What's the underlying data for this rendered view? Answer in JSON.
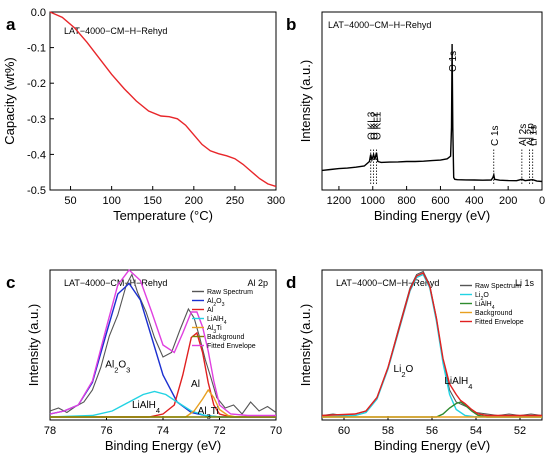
{
  "chart_data": [
    {
      "panel": "a",
      "type": "line",
      "sample_label": "LAT−4000−CM−H−Rehyd",
      "xlabel": "Temperature (°C)",
      "ylabel": "Capacity (wt%)",
      "xlim": [
        25,
        300
      ],
      "ylim": [
        -0.5,
        0.0
      ],
      "xticks": [
        50,
        100,
        150,
        200,
        250,
        300
      ],
      "yticks": [
        0.0,
        -0.1,
        -0.2,
        -0.3,
        -0.4,
        -0.5
      ],
      "ytick_labels": [
        "0.0",
        "-0.1",
        "-0.2",
        "-0.3",
        "-0.4",
        "-0.5"
      ],
      "series": [
        {
          "color": "#e8262a",
          "x": [
            25,
            40,
            55,
            70,
            85,
            100,
            115,
            130,
            145,
            160,
            170,
            180,
            190,
            200,
            210,
            220,
            230,
            240,
            250,
            260,
            270,
            280,
            290,
            300
          ],
          "y": [
            0.0,
            -0.015,
            -0.045,
            -0.085,
            -0.13,
            -0.175,
            -0.215,
            -0.25,
            -0.278,
            -0.292,
            -0.294,
            -0.3,
            -0.318,
            -0.345,
            -0.372,
            -0.39,
            -0.398,
            -0.404,
            -0.412,
            -0.428,
            -0.448,
            -0.468,
            -0.483,
            -0.49
          ]
        }
      ]
    },
    {
      "panel": "b",
      "type": "line",
      "sample_label": "LAT−4000−CM−H−Rehyd",
      "xlabel": "Binding Energy (eV)",
      "ylabel": "Intensity (a.u.)",
      "xlim": [
        1300,
        0
      ],
      "ylim": [
        0,
        1
      ],
      "xticks": [
        1200,
        1000,
        800,
        600,
        400,
        200,
        0
      ],
      "peak_labels": [
        {
          "text": "O KL3",
          "x": 1012
        },
        {
          "text": "O KL2",
          "x": 995
        },
        {
          "text": "O KL1",
          "x": 978
        },
        {
          "text": "O 1s",
          "x": 531
        },
        {
          "text": "C 1s",
          "x": 285
        },
        {
          "text": "Al 2s",
          "x": 119
        },
        {
          "text": "Al 2p",
          "x": 74
        },
        {
          "text": "Li 1s",
          "x": 55
        }
      ],
      "series": [
        {
          "color": "#000000",
          "x": [
            1300,
            1250,
            1200,
            1150,
            1100,
            1050,
            1020,
            1012,
            1005,
            995,
            988,
            978,
            970,
            950,
            900,
            850,
            800,
            750,
            700,
            650,
            600,
            560,
            540,
            535,
            531,
            527,
            522,
            515,
            500,
            450,
            400,
            350,
            300,
            290,
            285,
            280,
            250,
            200,
            150,
            119,
            100,
            74,
            55,
            30,
            0
          ],
          "y": [
            0.11,
            0.115,
            0.12,
            0.123,
            0.128,
            0.135,
            0.16,
            0.2,
            0.17,
            0.2,
            0.17,
            0.21,
            0.16,
            0.155,
            0.157,
            0.158,
            0.16,
            0.16,
            0.162,
            0.165,
            0.168,
            0.175,
            0.19,
            0.35,
            0.82,
            0.35,
            0.07,
            0.06,
            0.058,
            0.057,
            0.056,
            0.055,
            0.056,
            0.07,
            0.085,
            0.06,
            0.055,
            0.053,
            0.052,
            0.06,
            0.052,
            0.056,
            0.058,
            0.05,
            0.048
          ]
        }
      ]
    },
    {
      "panel": "c",
      "type": "line",
      "sample_label": "LAT−4000−CM−H−Rehyd",
      "region_label": "Al 2p",
      "xlabel": "Binding Energy (eV)",
      "ylabel": "Intensity (a.u.)",
      "xlim": [
        78,
        70
      ],
      "ylim": [
        0,
        1
      ],
      "xticks": [
        78,
        76,
        74,
        72,
        70
      ],
      "legend": [
        "Raw Spectrum",
        "Al2O3",
        "Al",
        "LiAlH4",
        "Al3Ti",
        "Background",
        "Fitted Envelope"
      ],
      "peak_labels": [
        {
          "text": "Al2O3",
          "x": 75.6,
          "y": 0.35
        },
        {
          "text": "LiAlH4",
          "x": 74.6,
          "y": 0.08
        },
        {
          "text": "Al",
          "x": 72.85,
          "y": 0.22
        },
        {
          "text": "Al3Ti",
          "x": 72.4,
          "y": 0.04
        }
      ],
      "series": [
        {
          "name": "Raw Spectrum",
          "color": "#555555",
          "x": [
            78,
            77.7,
            77.4,
            77.1,
            76.8,
            76.5,
            76.2,
            75.9,
            75.6,
            75.3,
            75.1,
            74.9,
            74.6,
            74.3,
            74.0,
            73.7,
            73.4,
            73.1,
            72.9,
            72.7,
            72.5,
            72.3,
            72.1,
            71.8,
            71.5,
            71.2,
            70.9,
            70.6,
            70.3,
            70.0
          ],
          "y": [
            0.06,
            0.08,
            0.05,
            0.09,
            0.12,
            0.2,
            0.35,
            0.56,
            0.7,
            0.9,
            0.97,
            0.85,
            0.72,
            0.55,
            0.42,
            0.45,
            0.6,
            0.74,
            0.68,
            0.55,
            0.4,
            0.28,
            0.15,
            0.08,
            0.1,
            0.04,
            0.12,
            0.06,
            0.09,
            0.05
          ]
        },
        {
          "name": "Al2O3",
          "color": "#1b2fd1",
          "x": [
            78,
            77.5,
            77,
            76.5,
            76,
            75.6,
            75.2,
            74.8,
            74.4,
            74,
            73.5,
            73,
            72.5,
            72,
            71.5,
            71,
            70.5,
            70
          ],
          "y": [
            0.04,
            0.06,
            0.1,
            0.25,
            0.58,
            0.84,
            0.91,
            0.8,
            0.55,
            0.3,
            0.12,
            0.05,
            0.03,
            0.02,
            0.02,
            0.02,
            0.02,
            0.02
          ]
        },
        {
          "name": "Al",
          "color": "#e02020",
          "x": [
            78,
            74.5,
            74,
            73.6,
            73.3,
            73.0,
            72.8,
            72.6,
            72.4,
            72.2,
            72.0,
            71.6,
            71,
            70
          ],
          "y": [
            0.02,
            0.02,
            0.04,
            0.1,
            0.3,
            0.55,
            0.58,
            0.45,
            0.25,
            0.1,
            0.04,
            0.02,
            0.02,
            0.02
          ]
        },
        {
          "name": "LiAlH4",
          "color": "#22d3e3",
          "x": [
            78,
            76.5,
            75.8,
            75.2,
            74.7,
            74.3,
            73.9,
            73.5,
            73.0,
            72.5,
            72,
            70
          ],
          "y": [
            0.02,
            0.03,
            0.06,
            0.12,
            0.17,
            0.19,
            0.17,
            0.12,
            0.06,
            0.03,
            0.02,
            0.02
          ]
        },
        {
          "name": "Al3Ti",
          "color": "#e8a020",
          "x": [
            78,
            73.2,
            72.9,
            72.6,
            72.4,
            72.2,
            72.0,
            71.7,
            71.4,
            70
          ],
          "y": [
            0.02,
            0.02,
            0.06,
            0.14,
            0.2,
            0.15,
            0.07,
            0.03,
            0.02,
            0.02
          ]
        },
        {
          "name": "Background",
          "color": "#7f7f00",
          "x": [
            78,
            70
          ],
          "y": [
            0.02,
            0.02
          ]
        },
        {
          "name": "Fitted Envelope",
          "color": "#e040e0",
          "x": [
            78,
            77.5,
            77,
            76.5,
            76,
            75.6,
            75.2,
            74.8,
            74.4,
            74,
            73.6,
            73.3,
            73.0,
            72.8,
            72.6,
            72.4,
            72.2,
            72.0,
            71.6,
            71,
            70.5,
            70
          ],
          "y": [
            0.04,
            0.06,
            0.1,
            0.26,
            0.62,
            0.9,
            1.0,
            0.93,
            0.72,
            0.5,
            0.45,
            0.58,
            0.72,
            0.72,
            0.62,
            0.46,
            0.26,
            0.1,
            0.04,
            0.03,
            0.03,
            0.03
          ]
        }
      ]
    },
    {
      "panel": "d",
      "type": "line",
      "sample_label": "LAT−4000−CM−H−Rehyd",
      "region_label": "Li 1s",
      "xlabel": "Binding Energy (eV)",
      "ylabel": "Intensity (a.u.)",
      "xlim": [
        61,
        51
      ],
      "ylim": [
        0,
        1
      ],
      "xticks": [
        60,
        58,
        56,
        54,
        52
      ],
      "legend": [
        "Raw Spectrum",
        "Li2O",
        "LiAlH4",
        "Background",
        "Fitted Envelope"
      ],
      "peak_labels": [
        {
          "text": "Li2O",
          "x": 57.3,
          "y": 0.32
        },
        {
          "text": "LiAlH4",
          "x": 54.8,
          "y": 0.24
        }
      ],
      "series": [
        {
          "name": "Raw Spectrum",
          "color": "#555555",
          "x": [
            61,
            60.5,
            60,
            59.5,
            59,
            58.5,
            58,
            57.5,
            57,
            56.7,
            56.4,
            56.1,
            55.8,
            55.5,
            55.2,
            54.9,
            54.6,
            54.3,
            54,
            53.5,
            53,
            52.5,
            52,
            51.5,
            51
          ],
          "y": [
            0.03,
            0.04,
            0.03,
            0.04,
            0.06,
            0.15,
            0.35,
            0.62,
            0.88,
            0.97,
            0.99,
            0.9,
            0.68,
            0.4,
            0.2,
            0.12,
            0.1,
            0.08,
            0.05,
            0.04,
            0.03,
            0.04,
            0.03,
            0.04,
            0.03
          ]
        },
        {
          "name": "Li2O",
          "color": "#22d3e3",
          "x": [
            61,
            59.5,
            59,
            58.5,
            58,
            57.5,
            57,
            56.7,
            56.4,
            56.1,
            55.8,
            55.5,
            55.2,
            54.9,
            54.5,
            54,
            51
          ],
          "y": [
            0.02,
            0.03,
            0.05,
            0.14,
            0.34,
            0.6,
            0.86,
            0.95,
            0.97,
            0.88,
            0.66,
            0.38,
            0.17,
            0.07,
            0.03,
            0.02,
            0.02
          ]
        },
        {
          "name": "LiAlH4",
          "color": "#2e8b2e",
          "x": [
            61,
            55.8,
            55.5,
            55.2,
            54.9,
            54.7,
            54.5,
            54.2,
            53.9,
            53.5,
            51
          ],
          "y": [
            0.02,
            0.02,
            0.04,
            0.08,
            0.11,
            0.12,
            0.1,
            0.06,
            0.03,
            0.02,
            0.02
          ]
        },
        {
          "name": "Background",
          "color": "#e8a020",
          "x": [
            61,
            51
          ],
          "y": [
            0.02,
            0.02
          ]
        },
        {
          "name": "Fitted Envelope",
          "color": "#e02020",
          "x": [
            61,
            59.5,
            59,
            58.5,
            58,
            57.5,
            57,
            56.7,
            56.4,
            56.1,
            55.8,
            55.5,
            55.2,
            54.9,
            54.7,
            54.5,
            54.2,
            53.9,
            53.5,
            51
          ],
          "y": [
            0.03,
            0.04,
            0.06,
            0.15,
            0.35,
            0.61,
            0.87,
            0.96,
            0.98,
            0.89,
            0.68,
            0.41,
            0.24,
            0.17,
            0.13,
            0.11,
            0.07,
            0.04,
            0.03,
            0.03
          ]
        }
      ]
    }
  ],
  "colors": {
    "axis": "#000000"
  }
}
